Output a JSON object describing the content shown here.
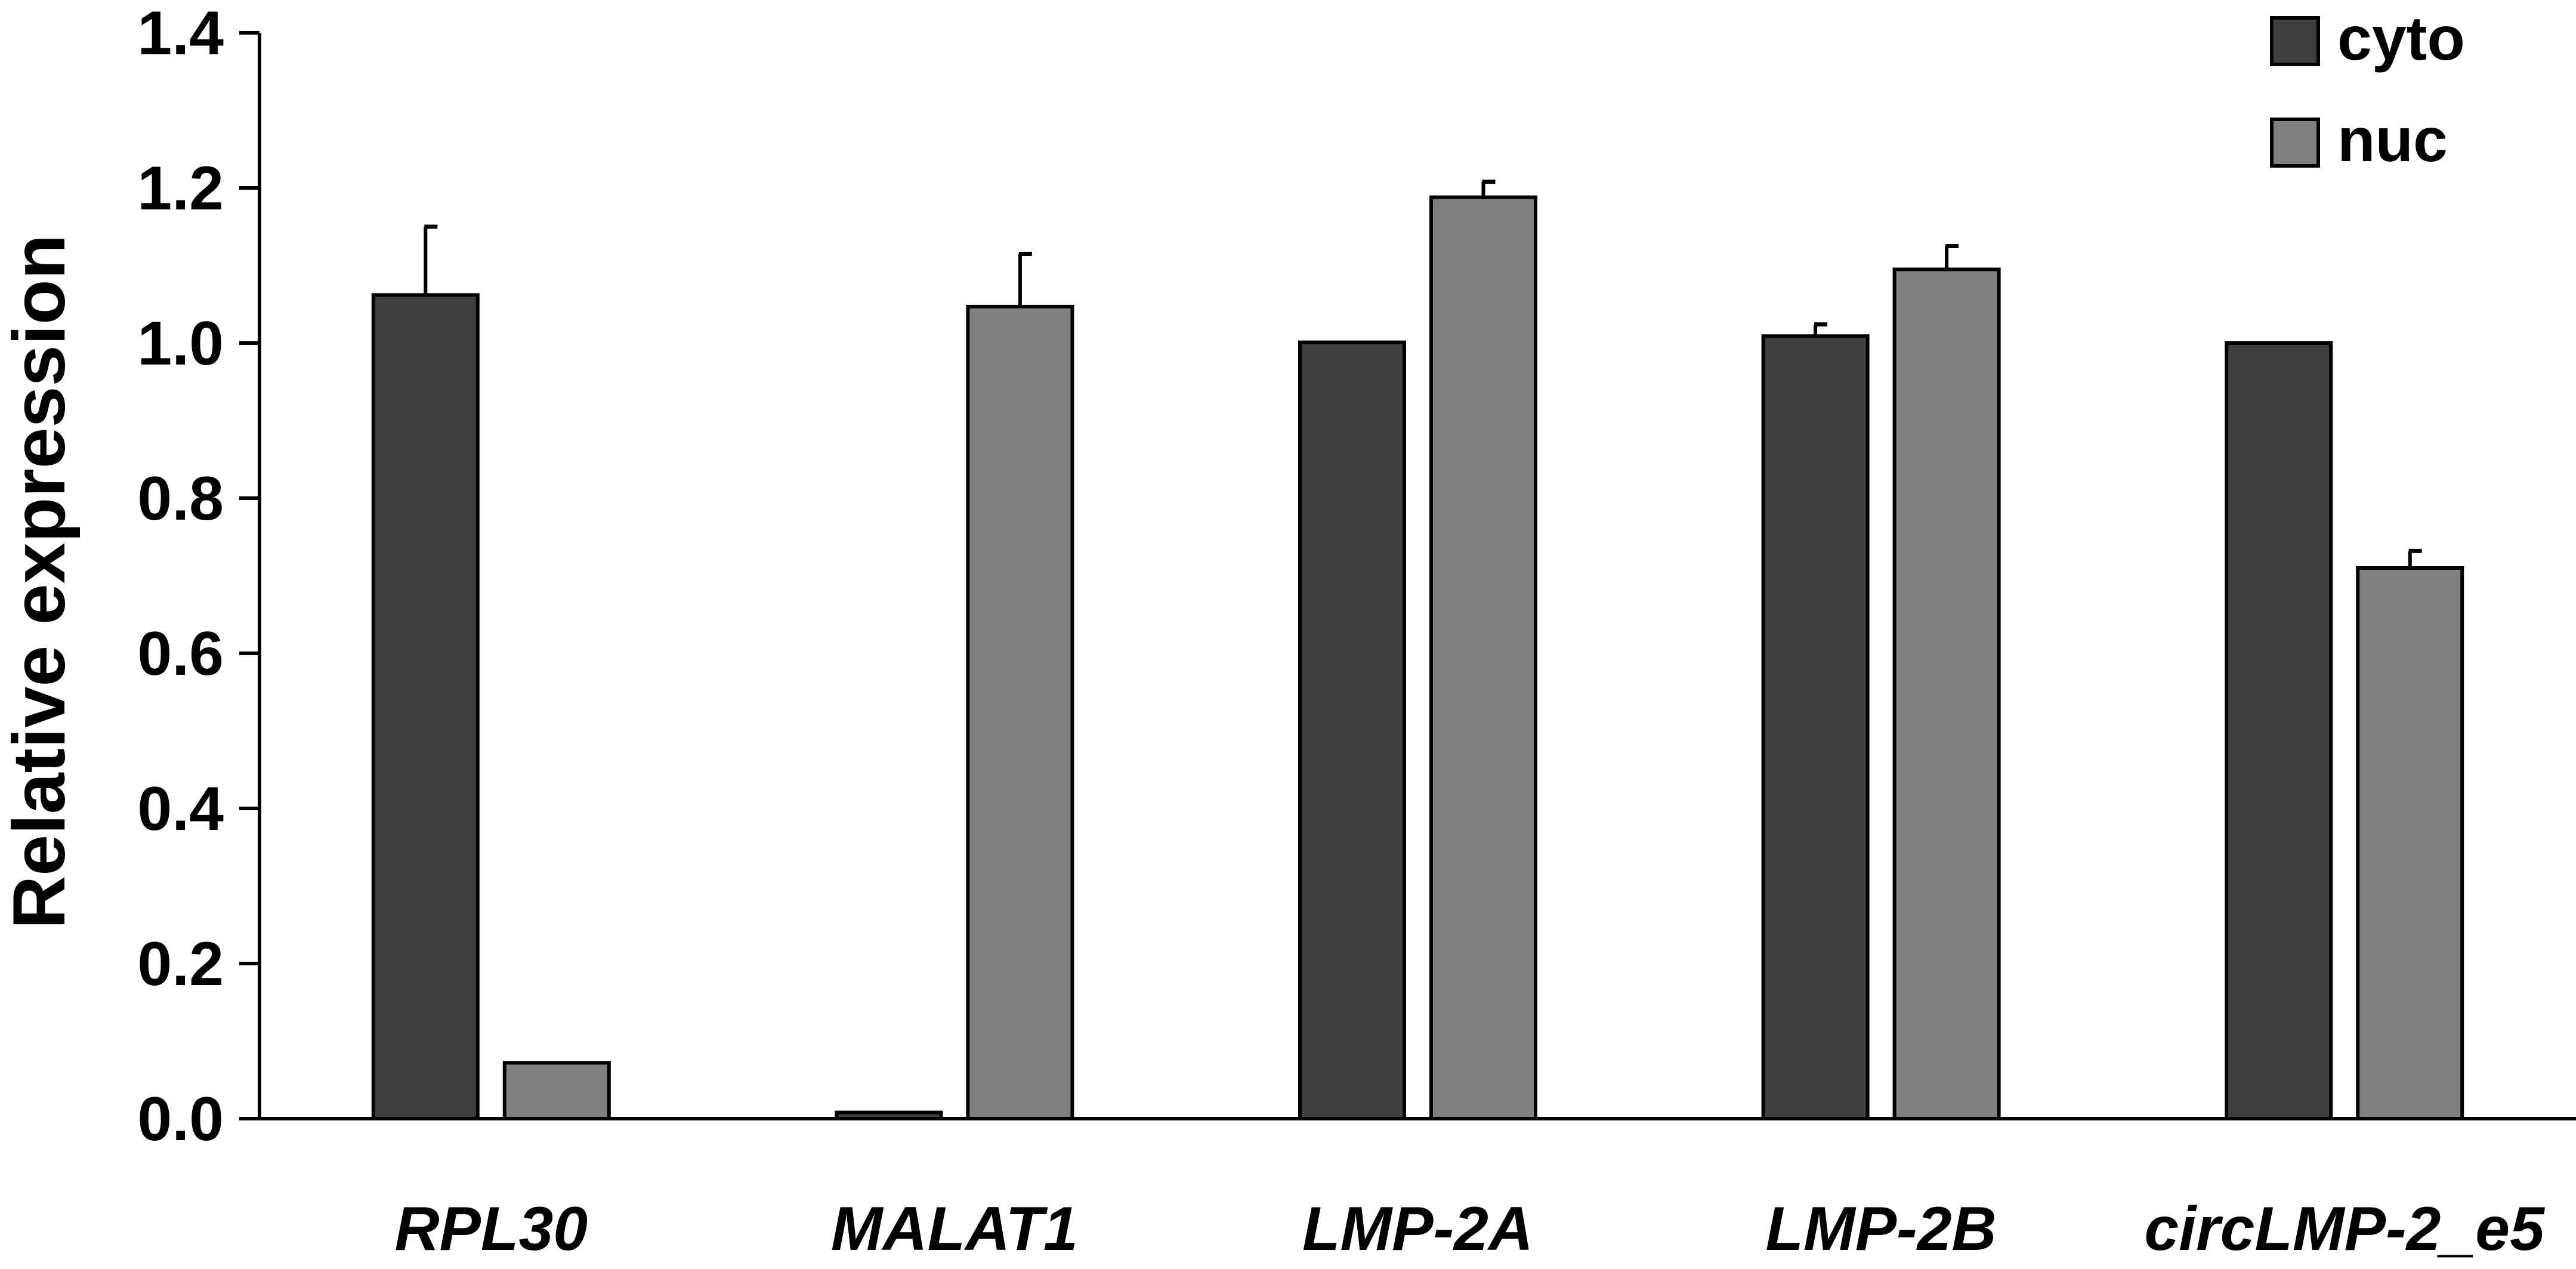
{
  "chart_data": {
    "type": "bar",
    "title": "",
    "xlabel": "",
    "ylabel": "Relative expression",
    "ylim": [
      0,
      1.4
    ],
    "yticks": [
      "0.0",
      "0.2",
      "0.4",
      "0.6",
      "0.8",
      "1.0",
      "1.2",
      "1.4"
    ],
    "categories": [
      "RPL30",
      "MALAT1",
      "LMP-2A",
      "LMP-2B",
      "circLMP-2_e5"
    ],
    "series": [
      {
        "name": "cyto",
        "color": "#404040",
        "values": [
          1.062,
          0.008,
          1.001,
          1.009,
          1.0
        ],
        "errors": [
          0.088,
          0.001,
          0.003,
          0.015,
          0.0
        ]
      },
      {
        "name": "nuc",
        "color": "#808080",
        "values": [
          0.072,
          1.047,
          1.188,
          1.095,
          0.71
        ],
        "errors": [
          0.002,
          0.068,
          0.02,
          0.03,
          0.022
        ]
      }
    ],
    "grid": false,
    "legend_position": "top-right"
  }
}
